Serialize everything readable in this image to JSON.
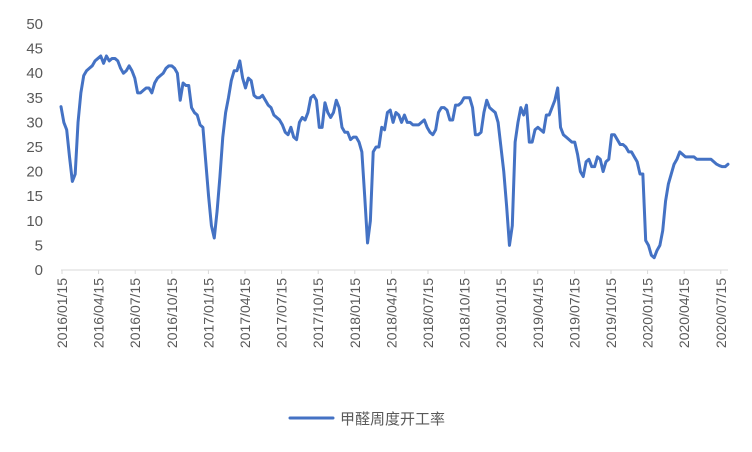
{
  "chart_data": {
    "type": "line",
    "title": "",
    "xlabel": "",
    "ylabel": "",
    "ylim": [
      0,
      50
    ],
    "y_ticks": [
      0,
      5,
      10,
      15,
      20,
      25,
      30,
      35,
      40,
      45,
      50
    ],
    "x_tick_labels": [
      "2016/01/15",
      "2016/04/15",
      "2016/07/15",
      "2016/10/15",
      "2017/01/15",
      "2017/04/15",
      "2017/07/15",
      "2017/10/15",
      "2018/01/15",
      "2018/04/15",
      "2018/07/15",
      "2018/10/15",
      "2019/01/15",
      "2019/04/15",
      "2019/07/15",
      "2019/10/15",
      "2020/01/15",
      "2020/04/15",
      "2020/07/15"
    ],
    "grid": false,
    "legend_position": "bottom",
    "series": [
      {
        "name": "甲醛周度开工率",
        "color": "#4472C4",
        "values": [
          33.2,
          30.0,
          28.5,
          23.0,
          18.0,
          19.5,
          30.0,
          36.0,
          39.5,
          40.5,
          41.0,
          41.5,
          42.5,
          43.0,
          43.5,
          42.0,
          43.5,
          42.5,
          43.0,
          43.0,
          42.5,
          41.0,
          40.0,
          40.5,
          41.5,
          40.5,
          39.0,
          36.0,
          36.0,
          36.5,
          37.0,
          37.0,
          36.0,
          38.0,
          39.0,
          39.5,
          40.0,
          41.0,
          41.5,
          41.5,
          41.0,
          40.0,
          34.5,
          38.0,
          37.5,
          37.5,
          33.0,
          32.0,
          31.5,
          29.5,
          29.0,
          22.0,
          15.0,
          9.0,
          6.5,
          12.0,
          19.0,
          27.0,
          32.0,
          35.0,
          38.5,
          40.5,
          40.5,
          42.5,
          39.0,
          37.0,
          39.0,
          38.5,
          35.5,
          35.0,
          35.0,
          35.5,
          34.5,
          33.5,
          33.0,
          31.5,
          31.0,
          30.5,
          29.5,
          28.0,
          27.5,
          29.0,
          27.0,
          26.5,
          30.0,
          31.0,
          30.5,
          32.0,
          35.0,
          35.5,
          34.5,
          29.0,
          29.0,
          34.0,
          32.0,
          31.0,
          32.0,
          34.5,
          33.0,
          29.0,
          28.0,
          28.0,
          26.5,
          27.0,
          27.0,
          26.0,
          24.0,
          15.0,
          5.5,
          10.0,
          24.0,
          25.0,
          25.0,
          29.0,
          28.5,
          32.0,
          32.5,
          30.0,
          32.0,
          31.5,
          30.0,
          31.5,
          30.0,
          30.0,
          29.5,
          29.5,
          29.5,
          30.0,
          30.5,
          29.0,
          28.0,
          27.5,
          28.5,
          32.0,
          33.0,
          33.0,
          32.5,
          30.5,
          30.5,
          33.5,
          33.5,
          34.0,
          35.0,
          35.0,
          35.0,
          33.0,
          27.5,
          27.5,
          28.0,
          32.0,
          34.5,
          33.0,
          32.5,
          32.0,
          30.0,
          25.0,
          20.0,
          13.0,
          5.0,
          9.0,
          26.0,
          30.0,
          33.0,
          31.5,
          33.5,
          26.0,
          26.0,
          28.5,
          29.0,
          28.5,
          28.0,
          31.5,
          31.5,
          33.0,
          34.5,
          37.0,
          29.0,
          27.5,
          27.0,
          26.5,
          26.0,
          26.0,
          23.5,
          20.0,
          19.0,
          22.0,
          22.5,
          21.0,
          21.0,
          23.0,
          22.5,
          20.0,
          22.0,
          22.5,
          27.5,
          27.5,
          26.5,
          25.5,
          25.5,
          25.0,
          24.0,
          24.0,
          23.0,
          22.0,
          19.5,
          19.5,
          6.0,
          5.0,
          3.0,
          2.5,
          4.0,
          5.0,
          8.0,
          14.0,
          17.5,
          19.5,
          21.5,
          22.5,
          24.0,
          23.5,
          23.0,
          23.0,
          23.0,
          23.0,
          22.5,
          22.5,
          22.5,
          22.5,
          22.5,
          22.5,
          22.0,
          21.5,
          21.2,
          21.0,
          21.0,
          21.5
        ]
      }
    ]
  }
}
